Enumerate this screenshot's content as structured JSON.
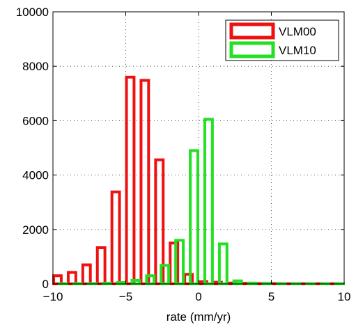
{
  "chart_data": {
    "type": "bar",
    "title": "",
    "xlabel": "rate (mm/yr)",
    "ylabel": "",
    "xlim": [
      -10,
      10
    ],
    "ylim": [
      0,
      10000
    ],
    "xticks": [
      -10,
      -5,
      0,
      5,
      10
    ],
    "yticks": [
      0,
      2000,
      4000,
      6000,
      8000,
      10000
    ],
    "grid": true,
    "legend_position": "top-right",
    "bin_width": 1,
    "series": [
      {
        "name": "VLM00",
        "color": "#ee1111",
        "bins": [
          {
            "x": -9.5,
            "value": 300
          },
          {
            "x": -8.5,
            "value": 420
          },
          {
            "x": -7.5,
            "value": 700
          },
          {
            "x": -6.5,
            "value": 1330
          },
          {
            "x": -5.5,
            "value": 3380
          },
          {
            "x": -4.5,
            "value": 7600
          },
          {
            "x": -3.5,
            "value": 7480
          },
          {
            "x": -2.5,
            "value": 4560
          },
          {
            "x": -1.5,
            "value": 1500
          },
          {
            "x": -0.5,
            "value": 350
          },
          {
            "x": 0.5,
            "value": 80
          },
          {
            "x": 1.5,
            "value": 60
          },
          {
            "x": 2.5,
            "value": 30
          },
          {
            "x": 3.5,
            "value": 20
          },
          {
            "x": 4.5,
            "value": 10
          },
          {
            "x": 5.5,
            "value": 10
          },
          {
            "x": 6.5,
            "value": 5
          },
          {
            "x": 7.5,
            "value": 5
          },
          {
            "x": 8.5,
            "value": 5
          },
          {
            "x": 9.5,
            "value": 5
          }
        ]
      },
      {
        "name": "VLM10",
        "color": "#22e022",
        "bins": [
          {
            "x": -9.5,
            "value": 10
          },
          {
            "x": -8.5,
            "value": 10
          },
          {
            "x": -7.5,
            "value": 10
          },
          {
            "x": -6.5,
            "value": 20
          },
          {
            "x": -5.5,
            "value": 50
          },
          {
            "x": -4.5,
            "value": 130
          },
          {
            "x": -3.5,
            "value": 300
          },
          {
            "x": -2.5,
            "value": 680
          },
          {
            "x": -1.5,
            "value": 1600
          },
          {
            "x": -0.5,
            "value": 4900
          },
          {
            "x": 0.5,
            "value": 6050
          },
          {
            "x": 1.5,
            "value": 1470
          },
          {
            "x": 2.5,
            "value": 110
          },
          {
            "x": 3.5,
            "value": 30
          },
          {
            "x": 4.5,
            "value": 20
          },
          {
            "x": 5.5,
            "value": 10
          },
          {
            "x": 6.5,
            "value": 10
          },
          {
            "x": 7.5,
            "value": 5
          },
          {
            "x": 8.5,
            "value": 5
          },
          {
            "x": 9.5,
            "value": 5
          }
        ]
      }
    ]
  }
}
